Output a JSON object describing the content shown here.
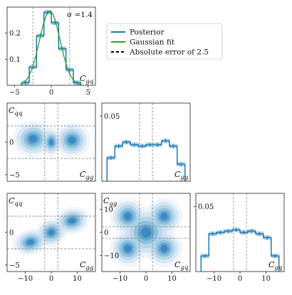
{
  "colors": {
    "posterior": "#1f77b4",
    "band": "#9ecae1",
    "gaussian": "#2ca02c",
    "error": "#000000",
    "guides": "#888888"
  },
  "legend": {
    "items": [
      {
        "label": "Posterior",
        "color": "#1f77b4",
        "style": "solid"
      },
      {
        "label": "Gaussian fit",
        "color": "#2ca02c",
        "style": "solid"
      },
      {
        "label": "Absolute error of 2.5",
        "color": "#000000",
        "style": "dashed"
      }
    ]
  },
  "chart_data": [
    {
      "type": "bar",
      "panel": "marginal-top-left",
      "annotation": "σ =1.4",
      "xlabel": "C_gq",
      "xlim": [
        -6,
        6
      ],
      "ylim": [
        0,
        0.3
      ],
      "xticks": [
        -5,
        0,
        5
      ],
      "yticks": [
        0.1,
        0.2
      ],
      "guides_x": [
        -2.5,
        2.5
      ],
      "bin_edges": [
        -4,
        -3,
        -2,
        -1,
        0,
        1,
        2,
        3,
        4
      ],
      "values": [
        0.01,
        0.07,
        0.19,
        0.28,
        0.24,
        0.14,
        0.06,
        0.01
      ],
      "gaussian": {
        "mu": -0.2,
        "sigma": 1.4
      }
    },
    {
      "type": "heatmap",
      "panel": "joint-middle-left",
      "xlabel": "C_gg",
      "ylabel": "C_qq",
      "xlim": [
        -17,
        17
      ],
      "ylim": [
        -6,
        6
      ],
      "yticks": [
        -5,
        0
      ],
      "guides_x": [
        -2.5,
        2.5
      ],
      "guides_y": [
        -2.5,
        2.5
      ]
    },
    {
      "type": "bar",
      "panel": "marginal-middle",
      "xlabel": "C_gg",
      "xlim": [
        -17,
        17
      ],
      "ylim": [
        0,
        0.06
      ],
      "yticks": [
        0.05
      ],
      "guides_x": [
        -2.5,
        2.5
      ],
      "bin_edges": [
        -15,
        -12,
        -9,
        -6,
        -3,
        0,
        3,
        6,
        9,
        12,
        15
      ],
      "values": [
        0.018,
        0.027,
        0.03,
        0.028,
        0.027,
        0.028,
        0.028,
        0.031,
        0.027,
        0.013
      ]
    },
    {
      "type": "heatmap",
      "panel": "joint-bottom-left",
      "xlabel": "C_gg",
      "ylabel": "C_qq",
      "xlim": [
        -17,
        17
      ],
      "ylim": [
        -6,
        6
      ],
      "xticks": [
        -10,
        0,
        10
      ],
      "yticks": [
        -5,
        0
      ],
      "guides_x": [
        -2.5,
        2.5
      ],
      "guides_y": [
        -2.5,
        2.5
      ]
    },
    {
      "type": "heatmap",
      "panel": "joint-bottom-middle",
      "xlabel": "C_gq",
      "ylabel": "C_gg",
      "xlim": [
        -17,
        17
      ],
      "ylim": [
        -17,
        17
      ],
      "xticks": [
        -10,
        0,
        10
      ],
      "yticks": [
        -10,
        0,
        10
      ],
      "guides_x": [
        -2.5,
        2.5
      ],
      "guides_y": [
        -2.5,
        2.5
      ]
    },
    {
      "type": "bar",
      "panel": "marginal-bottom-right",
      "xlabel": "C_gq",
      "xlim": [
        -17,
        17
      ],
      "ylim": [
        0,
        0.06
      ],
      "xticks": [
        -10,
        0,
        10
      ],
      "yticks": [
        0.05
      ],
      "guides_x": [
        -2.5,
        2.5
      ],
      "bin_edges": [
        -15,
        -12,
        -9,
        -6,
        -3,
        0,
        3,
        6,
        9,
        12,
        15
      ],
      "values": [
        0.012,
        0.029,
        0.03,
        0.031,
        0.032,
        0.03,
        0.031,
        0.029,
        0.026,
        0.012
      ]
    }
  ]
}
